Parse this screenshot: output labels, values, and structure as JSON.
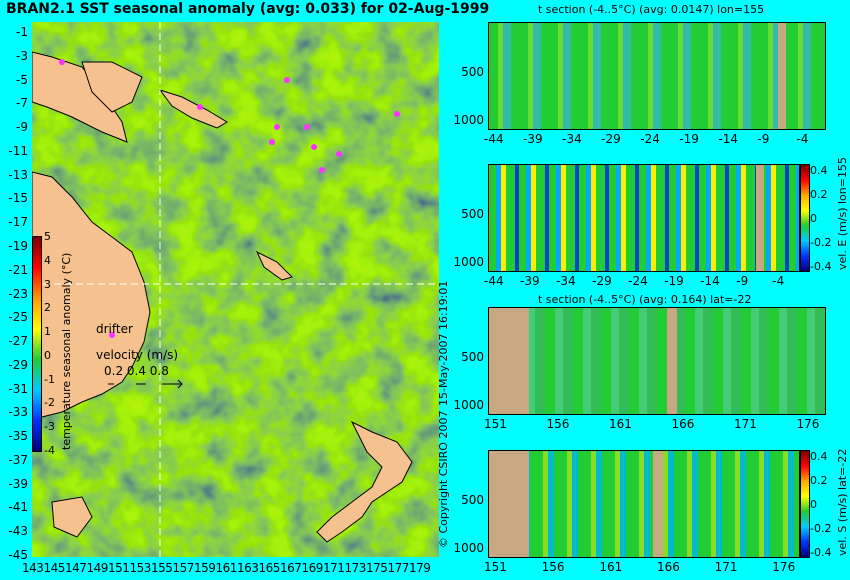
{
  "main_map": {
    "title": "BRAN2.1 SST seasonal anomaly (avg: 0.033) for 02-Aug-1999",
    "lat_ticks": [
      "-1",
      "-3",
      "-5",
      "-7",
      "-9",
      "-11",
      "-13",
      "-15",
      "-17",
      "-19",
      "-21",
      "-23",
      "-25",
      "-27",
      "-29",
      "-31",
      "-33",
      "-35",
      "-37",
      "-39",
      "-41",
      "-43",
      "-45"
    ],
    "lon_ticks": [
      "143",
      "145",
      "147",
      "149",
      "151",
      "153",
      "155",
      "157",
      "159",
      "161",
      "163",
      "165",
      "167",
      "169",
      "171",
      "173",
      "175",
      "177",
      "179"
    ],
    "section_lines": {
      "lon": 155,
      "lat": -22
    },
    "colorbar": {
      "label": "temperature seasonal anomaly (°C)",
      "ticks": [
        "5",
        "4",
        "3",
        "2",
        "1",
        "0",
        "-1",
        "-2",
        "-3",
        "-4"
      ],
      "range": [
        -4,
        5
      ]
    },
    "drifter_label": "drifter",
    "velocity_legend": {
      "label": "velocity (m/s)",
      "values": "0.2 0.4 0.8"
    },
    "colors": {
      "land": "#f5c28f",
      "drifter": "#ff33ff",
      "ocean_base": "#22cc33",
      "section_line": "#ffffff"
    }
  },
  "copyright": "© Copyright CSIRO 2007",
  "date_stamp": "15-May-2007 16:19:01",
  "panels": [
    {
      "title": "t section (-4..5°C) (avg: 0.0147) lon=155",
      "x_ticks": [
        "-44",
        "-39",
        "-34",
        "-29",
        "-24",
        "-19",
        "-14",
        "-9",
        "-4"
      ],
      "y_ticks": [
        "500",
        "1000"
      ]
    },
    {
      "title": "",
      "x_ticks": [
        "-44",
        "-39",
        "-34",
        "-29",
        "-24",
        "-19",
        "-14",
        "-9",
        "-4"
      ],
      "y_ticks": [
        "500",
        "1000"
      ],
      "colorbar_label": "vel. E (m/s) lon=155",
      "colorbar_ticks": [
        "0.4",
        "0.2",
        "0",
        "-0.2",
        "-0.4"
      ]
    },
    {
      "title": "t section (-4..5°C) (avg: 0.164) lat=-22",
      "x_ticks": [
        "151",
        "156",
        "161",
        "166",
        "171",
        "176"
      ],
      "y_ticks": [
        "500",
        "1000"
      ]
    },
    {
      "title": "",
      "x_ticks": [
        "151",
        "156",
        "161",
        "166",
        "171",
        "176"
      ],
      "y_ticks": [
        "500",
        "1000"
      ],
      "colorbar_label": "vel. S (m/s) lat=-22",
      "colorbar_ticks": [
        "0.4",
        "0.2",
        "0",
        "-0.2",
        "-0.4"
      ]
    }
  ],
  "chart_data": [
    {
      "type": "heatmap",
      "title": "BRAN2.1 SST seasonal anomaly (avg: 0.033) for 02-Aug-1999",
      "xlabel": "",
      "ylabel": "",
      "xlim": [
        143,
        180
      ],
      "ylim": [
        -45,
        0
      ],
      "colorbar_range": [
        -4,
        5
      ],
      "average": 0.033
    },
    {
      "type": "heatmap",
      "title": "t section (-4..5°C) (avg: 0.0147) lon=155",
      "xlim": [
        -45,
        0
      ],
      "ylim": [
        1050,
        0
      ],
      "average": 0.0147
    },
    {
      "type": "heatmap",
      "title": "",
      "colorbar_label": "vel. E (m/s) lon=155",
      "xlim": [
        -45,
        0
      ],
      "ylim": [
        1050,
        0
      ],
      "colorbar_range": [
        -0.4,
        0.4
      ]
    },
    {
      "type": "heatmap",
      "title": "t section (-4..5°C) (avg: 0.164) lat=-22",
      "xlim": [
        150,
        180
      ],
      "ylim": [
        1050,
        0
      ],
      "average": 0.164
    },
    {
      "type": "heatmap",
      "title": "",
      "colorbar_label": "vel. S (m/s) lat=-22",
      "xlim": [
        150,
        180
      ],
      "ylim": [
        1050,
        0
      ],
      "colorbar_range": [
        -0.4,
        0.4
      ]
    }
  ]
}
